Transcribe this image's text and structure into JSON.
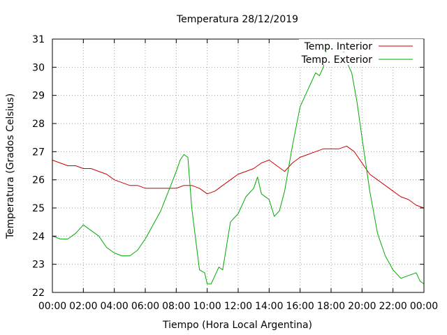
{
  "chart_data": {
    "type": "line",
    "title": "Temperatura 28/12/2019",
    "xlabel": "Tiempo (Hora Local Argentina)",
    "ylabel": "Temperatura (Grados Celsius)",
    "ylim": [
      22,
      31
    ],
    "xlim": [
      "00:00",
      "24:00"
    ],
    "x_ticks": [
      "00:00",
      "02:00",
      "04:00",
      "06:00",
      "08:00",
      "10:00",
      "12:00",
      "14:00",
      "16:00",
      "18:00",
      "20:00",
      "22:00",
      "00:00"
    ],
    "y_ticks": [
      "22",
      "23",
      "24",
      "25",
      "26",
      "27",
      "28",
      "29",
      "30",
      "31"
    ],
    "grid": true,
    "legend_position": "top-right",
    "series": [
      {
        "name": "Temp. Interior",
        "color": "#cc0000",
        "x": [
          "00:00",
          "00:30",
          "01:00",
          "01:30",
          "02:00",
          "02:30",
          "03:00",
          "03:30",
          "04:00",
          "04:30",
          "05:00",
          "05:30",
          "06:00",
          "06:30",
          "07:00",
          "07:30",
          "08:00",
          "08:30",
          "09:00",
          "09:30",
          "10:00",
          "10:30",
          "11:00",
          "11:30",
          "12:00",
          "12:30",
          "13:00",
          "13:30",
          "14:00",
          "14:30",
          "15:00",
          "15:30",
          "16:00",
          "16:30",
          "17:00",
          "17:30",
          "18:00",
          "18:30",
          "19:00",
          "19:30",
          "20:00",
          "20:30",
          "21:00",
          "21:30",
          "22:00",
          "22:30",
          "23:00",
          "23:30",
          "24:00"
        ],
        "values": [
          26.7,
          26.6,
          26.5,
          26.5,
          26.4,
          26.4,
          26.3,
          26.2,
          26.0,
          25.9,
          25.8,
          25.8,
          25.7,
          25.7,
          25.7,
          25.7,
          25.7,
          25.8,
          25.8,
          25.7,
          25.5,
          25.6,
          25.8,
          26.0,
          26.2,
          26.3,
          26.4,
          26.6,
          26.7,
          26.5,
          26.3,
          26.6,
          26.8,
          26.9,
          27.0,
          27.1,
          27.1,
          27.1,
          27.2,
          27.0,
          26.6,
          26.2,
          26.0,
          25.8,
          25.6,
          25.4,
          25.3,
          25.1,
          25.0
        ]
      },
      {
        "name": "Temp. Exterior",
        "color": "#00aa00",
        "x": [
          "00:00",
          "00:30",
          "01:00",
          "01:30",
          "02:00",
          "02:30",
          "03:00",
          "03:30",
          "04:00",
          "04:30",
          "05:00",
          "05:30",
          "06:00",
          "06:30",
          "07:00",
          "07:30",
          "08:00",
          "08:15",
          "08:30",
          "08:45",
          "09:00",
          "09:30",
          "09:50",
          "10:00",
          "10:15",
          "10:30",
          "10:45",
          "11:00",
          "11:30",
          "12:00",
          "12:30",
          "13:00",
          "13:15",
          "13:30",
          "14:00",
          "14:20",
          "14:40",
          "15:00",
          "15:30",
          "16:00",
          "16:30",
          "17:00",
          "17:15",
          "17:30",
          "17:45",
          "18:00",
          "18:20",
          "18:40",
          "19:00",
          "19:20",
          "19:40",
          "20:00",
          "20:30",
          "21:00",
          "21:30",
          "22:00",
          "22:30",
          "23:00",
          "23:30",
          "23:45",
          "24:00"
        ],
        "values": [
          24.0,
          23.9,
          23.9,
          24.1,
          24.4,
          24.2,
          24.0,
          23.6,
          23.4,
          23.3,
          23.3,
          23.5,
          23.9,
          24.4,
          24.9,
          25.6,
          26.3,
          26.7,
          26.9,
          26.8,
          25.0,
          22.8,
          22.7,
          22.3,
          22.3,
          22.6,
          22.9,
          22.8,
          24.5,
          24.8,
          25.4,
          25.7,
          26.1,
          25.5,
          25.3,
          24.7,
          24.9,
          25.6,
          27.2,
          28.6,
          29.2,
          29.8,
          29.7,
          30.0,
          30.8,
          30.6,
          30.8,
          30.8,
          30.2,
          29.8,
          28.8,
          27.5,
          25.6,
          24.1,
          23.3,
          22.8,
          22.5,
          22.6,
          22.7,
          22.4,
          22.3
        ]
      }
    ]
  }
}
